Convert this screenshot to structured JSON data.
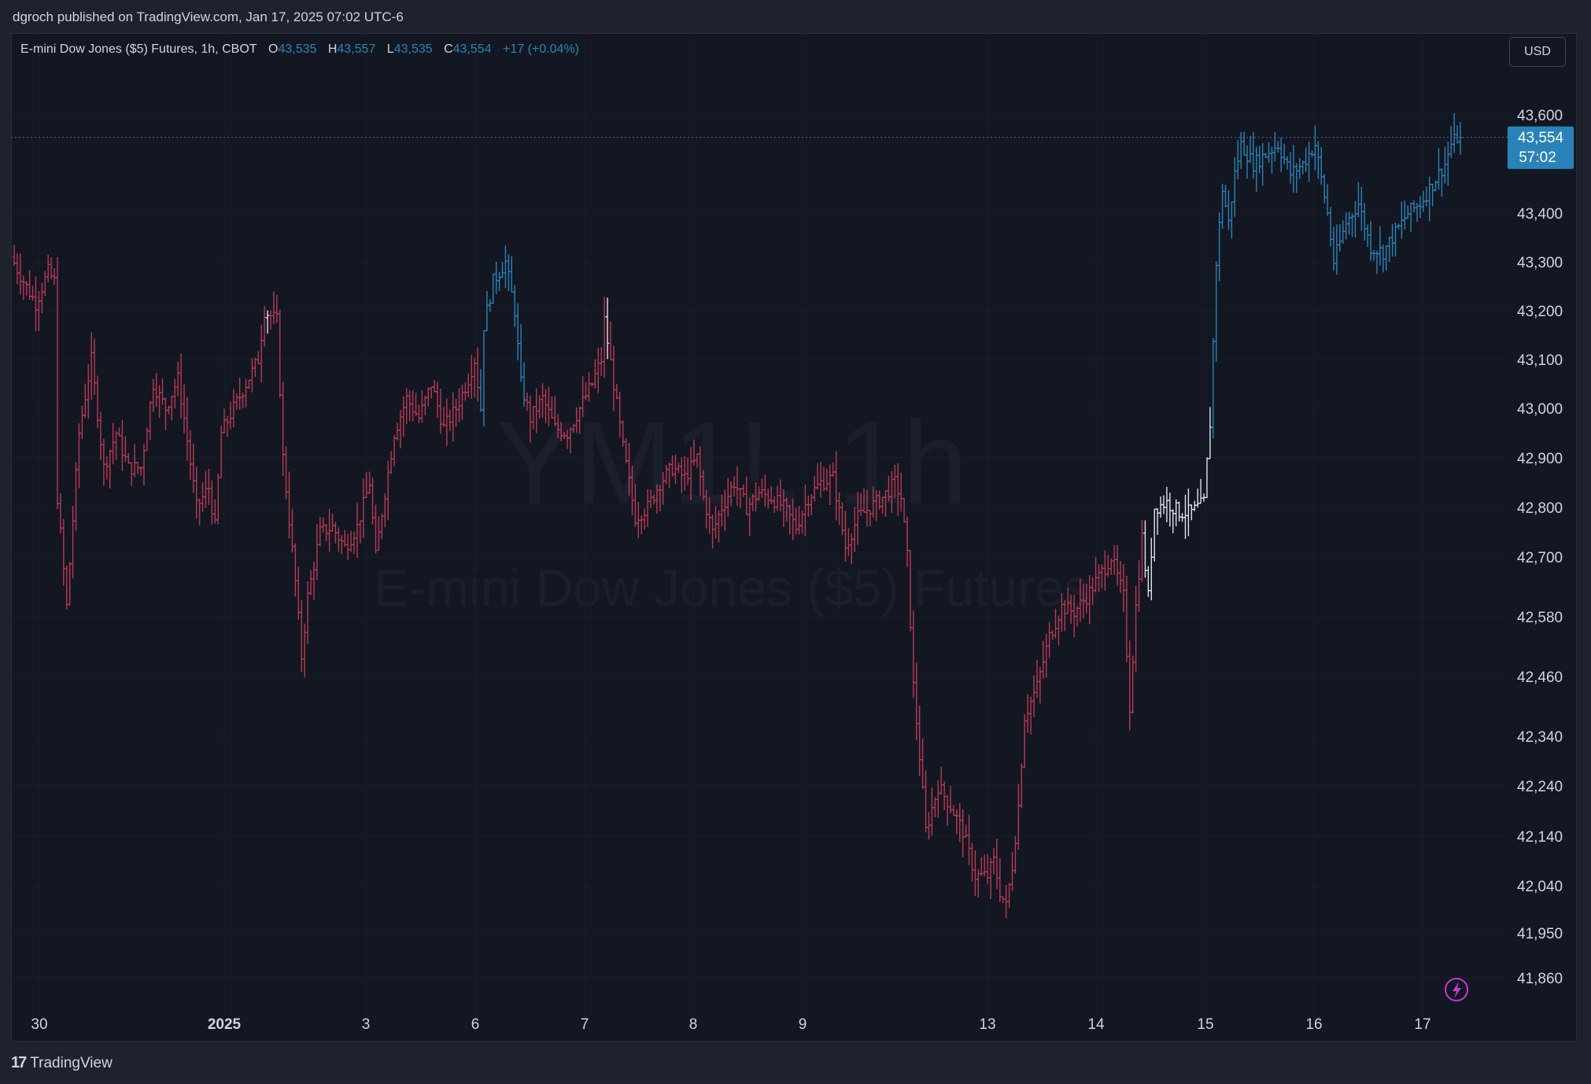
{
  "header": {
    "published_text": "dgroch published on TradingView.com, Jan 17, 2025 07:02 UTC-6"
  },
  "legend": {
    "symbol": "E-mini Dow Jones ($5) Futures, 1h, CBOT",
    "o_label": "O",
    "o_value": "43,535",
    "h_label": "H",
    "h_value": "43,557",
    "l_label": "L",
    "l_value": "43,535",
    "c_label": "C",
    "c_value": "43,554",
    "change": "+17 (+0.04%)"
  },
  "currency_button": "USD",
  "watermark": {
    "ticker": "YM1!, 1h",
    "name": "E-mini Dow Jones ($5) Futures"
  },
  "price_label": {
    "price": "43,554",
    "countdown": "57:02"
  },
  "footer": {
    "logo_text": "TradingView"
  },
  "colors": {
    "background": "#131722",
    "frame": "#1e222d",
    "bar_down": "#b83a55",
    "bar_up": "#2a83b8",
    "bar_neutral": "#e0e3eb",
    "price_line": "#6a5acd",
    "price_label_bg": "#2a83b8",
    "grid": "#1c2030",
    "text": "#d1d4dc",
    "lightning": "#c03bd1"
  },
  "chart_data": {
    "type": "ohlc",
    "title": "E-mini Dow Jones ($5) Futures, 1h, CBOT",
    "y_axis": {
      "tick_labels": [
        "43,600",
        "43,400",
        "43,300",
        "43,200",
        "43,100",
        "43,000",
        "42,900",
        "42,800",
        "42,700",
        "42,580",
        "42,460",
        "42,340",
        "42,240",
        "42,140",
        "42,040",
        "41,950",
        "41,860"
      ],
      "range": [
        41800,
        43700
      ]
    },
    "x_axis": {
      "tick_labels": [
        "30",
        "2025",
        "3",
        "6",
        "7",
        "8",
        "9",
        "13",
        "14",
        "15",
        "16",
        "17"
      ]
    },
    "last_price": 43554,
    "segments": [
      {
        "label": "30",
        "path": [
          [
            0,
            43310
          ],
          [
            4,
            43260
          ],
          [
            8,
            43215
          ],
          [
            12,
            43280
          ],
          [
            14,
            43260
          ],
          [
            15,
            42820
          ],
          [
            18,
            42600
          ],
          [
            22,
            42950
          ],
          [
            26,
            43100
          ],
          [
            30,
            42880
          ],
          [
            34,
            42950
          ],
          [
            38,
            42880
          ],
          [
            42,
            42880
          ],
          [
            46,
            43050
          ],
          [
            50,
            43000
          ],
          [
            54,
            43060
          ],
          [
            56,
            42980
          ]
        ]
      },
      {
        "label": "2025",
        "path": [
          [
            56,
            42980
          ],
          [
            60,
            42800
          ],
          [
            64,
            42840
          ],
          [
            66,
            42760
          ],
          [
            68,
            42950
          ],
          [
            72,
            43000
          ],
          [
            76,
            43050
          ],
          [
            80,
            43100
          ],
          [
            82,
            43200
          ],
          [
            86,
            43180
          ],
          [
            88,
            42900
          ],
          [
            92,
            42650
          ],
          [
            94,
            42500
          ],
          [
            96,
            42620
          ],
          [
            100,
            42750
          ],
          [
            104,
            42760
          ],
          [
            108,
            42720
          ],
          [
            112,
            42760
          ],
          [
            116,
            42850
          ],
          [
            118,
            42700
          ],
          [
            120,
            42790
          ]
        ]
      },
      {
        "label": "3-6",
        "path": [
          [
            120,
            42790
          ],
          [
            124,
            42950
          ],
          [
            128,
            43020
          ],
          [
            132,
            42980
          ],
          [
            136,
            43050
          ],
          [
            140,
            42960
          ],
          [
            144,
            43000
          ],
          [
            148,
            43060
          ],
          [
            150,
            43100
          ],
          [
            152,
            43000
          ],
          [
            153,
            43170
          ]
        ]
      },
      {
        "label": "6-7",
        "path": [
          [
            153,
            43170
          ],
          [
            156,
            43260
          ],
          [
            160,
            43300
          ],
          [
            163,
            43200
          ],
          [
            165,
            43050
          ],
          [
            168,
            42980
          ],
          [
            172,
            43020
          ],
          [
            176,
            42960
          ],
          [
            180,
            42950
          ],
          [
            184,
            43000
          ],
          [
            188,
            43050
          ],
          [
            191,
            43100
          ],
          [
            192,
            43180
          ]
        ]
      },
      {
        "label": "7-8",
        "path": [
          [
            192,
            43180
          ],
          [
            195,
            43050
          ],
          [
            198,
            42920
          ],
          [
            202,
            42780
          ],
          [
            206,
            42800
          ],
          [
            210,
            42850
          ],
          [
            214,
            42880
          ],
          [
            218,
            42860
          ],
          [
            222,
            42900
          ],
          [
            224,
            42820
          ],
          [
            227,
            42750
          ],
          [
            230,
            42800
          ],
          [
            234,
            42850
          ],
          [
            238,
            42800
          ],
          [
            242,
            42830
          ],
          [
            246,
            42820
          ],
          [
            250,
            42800
          ],
          [
            254,
            42760
          ],
          [
            258,
            42820
          ],
          [
            262,
            42850
          ],
          [
            266,
            42860
          ]
        ]
      },
      {
        "label": "9",
        "path": [
          [
            266,
            42860
          ],
          [
            270,
            42720
          ],
          [
            274,
            42780
          ],
          [
            278,
            42800
          ],
          [
            282,
            42820
          ],
          [
            286,
            42850
          ],
          [
            288,
            42820
          ],
          [
            290,
            42700
          ],
          [
            292,
            42440
          ],
          [
            294,
            42300
          ],
          [
            296,
            42150
          ],
          [
            300,
            42240
          ],
          [
            304,
            42200
          ],
          [
            308,
            42150
          ],
          [
            312,
            42060
          ],
          [
            316,
            42060
          ],
          [
            318,
            42090
          ],
          [
            320,
            42030
          ]
        ]
      },
      {
        "label": "13",
        "path": [
          [
            320,
            42030
          ],
          [
            322,
            42000
          ],
          [
            324,
            42080
          ],
          [
            326,
            42200
          ],
          [
            328,
            42380
          ],
          [
            332,
            42440
          ],
          [
            336,
            42540
          ],
          [
            340,
            42600
          ],
          [
            344,
            42590
          ],
          [
            348,
            42620
          ],
          [
            352,
            42660
          ],
          [
            356,
            42700
          ],
          [
            360,
            42620
          ]
        ]
      },
      {
        "label": "14",
        "path": [
          [
            360,
            42620
          ],
          [
            362,
            42400
          ],
          [
            364,
            42600
          ],
          [
            366,
            42740
          ],
          [
            368,
            42620
          ],
          [
            370,
            42800
          ],
          [
            374,
            42810
          ],
          [
            378,
            42790
          ],
          [
            382,
            42790
          ],
          [
            386,
            42810
          ]
        ]
      },
      {
        "label": "15",
        "path": [
          [
            386,
            42810
          ],
          [
            388,
            42970
          ],
          [
            390,
            43300
          ],
          [
            392,
            43450
          ],
          [
            394,
            43380
          ],
          [
            396,
            43480
          ],
          [
            398,
            43540
          ],
          [
            402,
            43500
          ],
          [
            406,
            43520
          ],
          [
            410,
            43540
          ],
          [
            414,
            43480
          ],
          [
            418,
            43500
          ],
          [
            422,
            43540
          ],
          [
            426,
            43400
          ],
          [
            428,
            43300
          ],
          [
            432,
            43380
          ]
        ]
      },
      {
        "label": "16-17",
        "path": [
          [
            432,
            43380
          ],
          [
            436,
            43420
          ],
          [
            440,
            43330
          ],
          [
            444,
            43320
          ],
          [
            448,
            43360
          ],
          [
            452,
            43400
          ],
          [
            456,
            43420
          ],
          [
            460,
            43460
          ],
          [
            464,
            43500
          ],
          [
            466,
            43540
          ],
          [
            468,
            43554
          ]
        ]
      }
    ]
  }
}
